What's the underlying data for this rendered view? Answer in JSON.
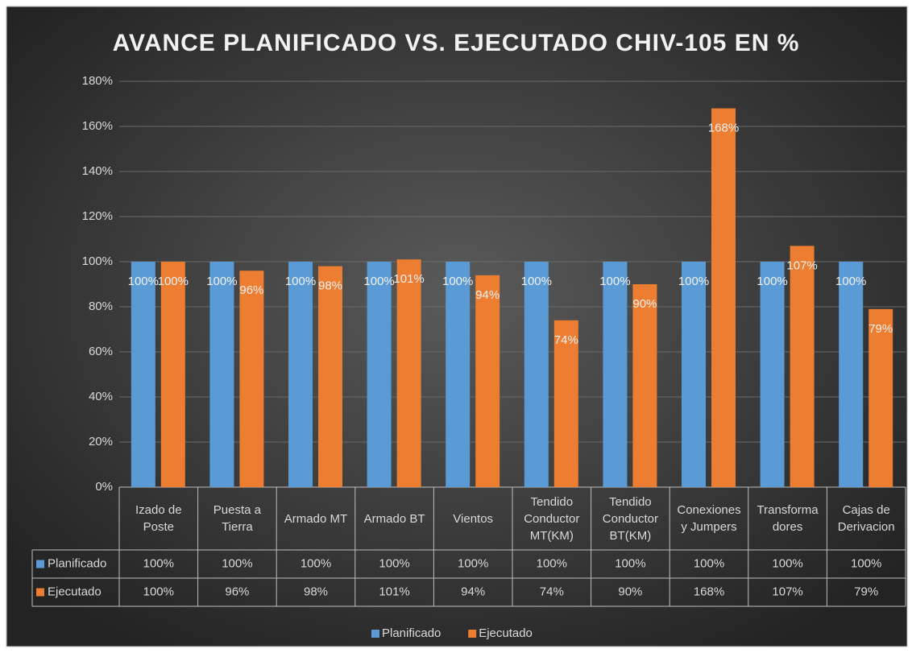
{
  "chart_data": {
    "type": "bar",
    "title": "AVANCE PLANIFICADO VS. EJECUTADO CHIV-105 EN %",
    "categories": [
      "Izado de\nPoste",
      "Puesta a\nTierra",
      "Armado MT",
      "Armado BT",
      "Vientos",
      "Tendido\nConductor\nMT(KM)",
      "Tendido\nConductor\nBT(KM)",
      "Conexiones\ny Jumpers",
      "Transforma\ndores",
      "Cajas de\nDerivacion"
    ],
    "series": [
      {
        "name": "Planificado",
        "color": "#5b9bd5",
        "values": [
          100,
          100,
          100,
          100,
          100,
          100,
          100,
          100,
          100,
          100
        ],
        "value_labels": [
          "100%",
          "100%",
          "100%",
          "100%",
          "100%",
          "100%",
          "100%",
          "100%",
          "100%",
          "100%"
        ]
      },
      {
        "name": "Ejecutado",
        "color": "#ed7d31",
        "values": [
          100,
          96,
          98,
          101,
          94,
          74,
          90,
          168,
          107,
          79
        ],
        "value_labels": [
          "100%",
          "96%",
          "98%",
          "101%",
          "94%",
          "74%",
          "90%",
          "168%",
          "107%",
          "79%"
        ]
      }
    ],
    "ylim": [
      0,
      180
    ],
    "yticks": [
      {
        "value": 0,
        "label": "0%"
      },
      {
        "value": 20,
        "label": "20%"
      },
      {
        "value": 40,
        "label": "40%"
      },
      {
        "value": 60,
        "label": "60%"
      },
      {
        "value": 80,
        "label": "80%"
      },
      {
        "value": 100,
        "label": "100%"
      },
      {
        "value": 120,
        "label": "120%"
      },
      {
        "value": 140,
        "label": "140%"
      },
      {
        "value": 160,
        "label": "160%"
      },
      {
        "value": 180,
        "label": "180%"
      }
    ],
    "grid": true,
    "legend": "bottom"
  }
}
